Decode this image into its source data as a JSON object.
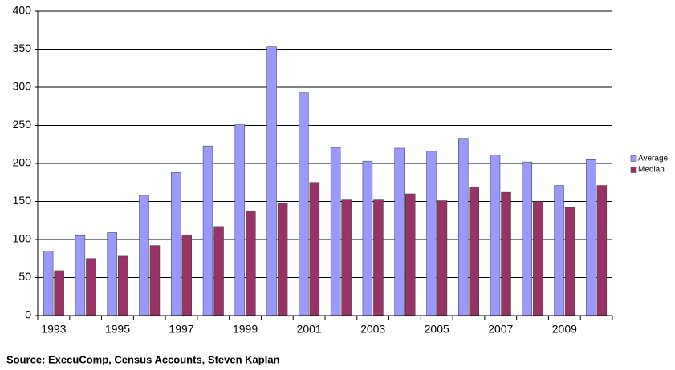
{
  "chart_data": {
    "type": "bar",
    "categories": [
      "1993",
      null,
      "1995",
      null,
      "1997",
      null,
      "1999",
      null,
      "2001",
      null,
      "2003",
      null,
      "2005",
      null,
      "2007",
      null,
      "2009",
      null
    ],
    "series": [
      {
        "name": "Average",
        "color": "#9999ff",
        "values": [
          85,
          105,
          109,
          158,
          188,
          223,
          251,
          353,
          293,
          221,
          203,
          220,
          216,
          233,
          211,
          202,
          171,
          205
        ]
      },
      {
        "name": "Median",
        "color": "#993366",
        "values": [
          59,
          75,
          78,
          92,
          106,
          117,
          137,
          147,
          175,
          152,
          152,
          160,
          151,
          168,
          162,
          150,
          142,
          171
        ]
      }
    ],
    "ylim": [
      0,
      400
    ],
    "yticks": [
      0,
      50,
      100,
      150,
      200,
      250,
      300,
      350,
      400
    ],
    "grid": true,
    "legend": "right",
    "source": "Source:  ExecuComp, Census Accounts, Steven Kaplan"
  }
}
